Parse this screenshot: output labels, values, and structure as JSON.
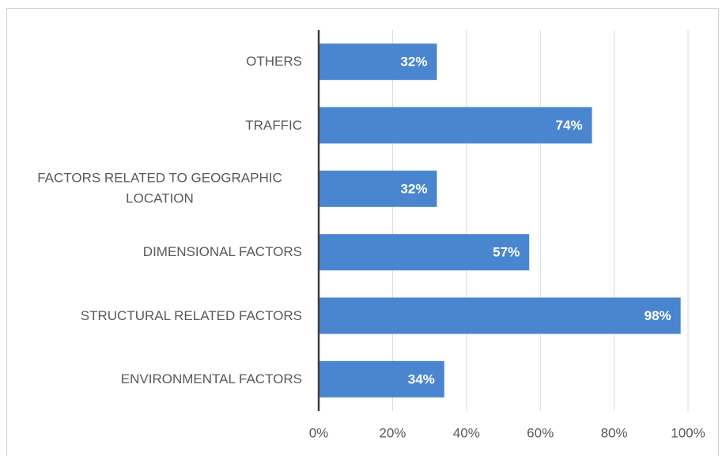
{
  "chart_data": {
    "type": "bar",
    "orientation": "horizontal",
    "categories": [
      "OTHERS",
      "TRAFFIC",
      "FACTORS RELATED TO GEOGRAPHIC LOCATION",
      "DIMENSIONAL FACTORS",
      "STRUCTURAL RELATED FACTORS",
      "ENVIRONMENTAL FACTORS"
    ],
    "values": [
      32,
      74,
      32,
      57,
      98,
      34
    ],
    "value_labels": [
      "32%",
      "74%",
      "32%",
      "57%",
      "98%",
      "34%"
    ],
    "color": "#4a86cf",
    "xlim": [
      0,
      100
    ],
    "xticks": [
      {
        "value": 0,
        "label": "0%"
      },
      {
        "value": 20,
        "label": "20%"
      },
      {
        "value": 40,
        "label": "40%"
      },
      {
        "value": 60,
        "label": "60%"
      },
      {
        "value": 80,
        "label": "80%"
      },
      {
        "value": 100,
        "label": "100%"
      }
    ],
    "grid": true
  }
}
